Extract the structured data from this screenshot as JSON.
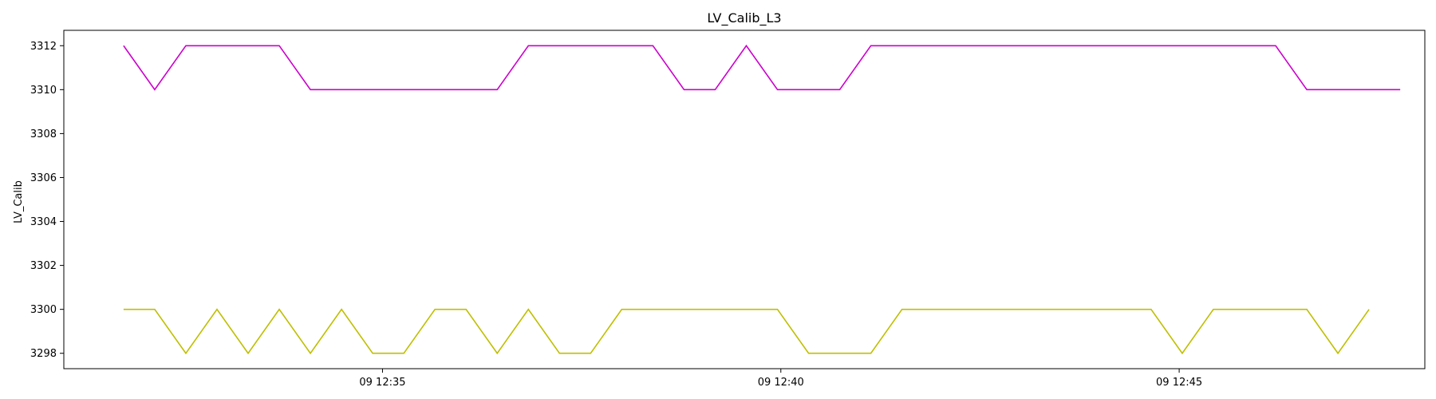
{
  "chart_data": {
    "type": "line",
    "title": "LV_Calib_L3",
    "xlabel": "",
    "ylabel": "LV_Calib",
    "x_axis": {
      "start_time": "12:31:45",
      "step_seconds": 23.45,
      "xlim_time": [
        "12:31:00",
        "12:48:05"
      ],
      "tick_times": [
        "12:35:00",
        "12:40:00",
        "12:45:00"
      ],
      "tick_labels": [
        "09 12:35",
        "09 12:40",
        "09 12:45"
      ]
    },
    "y_axis": {
      "ylim": [
        3297.3,
        3312.7
      ],
      "ticks": [
        3298,
        3300,
        3302,
        3304,
        3306,
        3308,
        3310,
        3312
      ],
      "tick_labels": [
        "3298",
        "3300",
        "3302",
        "3304",
        "3306",
        "3308",
        "3310",
        "3312"
      ]
    },
    "grid": false,
    "legend": "none",
    "series": [
      {
        "color": "#cc00cc",
        "values": [
          3312,
          3310,
          3312,
          3312,
          3312,
          3312,
          3310,
          3310,
          3310,
          3310,
          3310,
          3310,
          3310,
          3312,
          3312,
          3312,
          3312,
          3312,
          3310,
          3310,
          3312,
          3310,
          3310,
          3310,
          3312,
          3312,
          3312,
          3312,
          3312,
          3312,
          3312,
          3312,
          3312,
          3312,
          3312,
          3312,
          3312,
          3312,
          3310,
          3310,
          3310,
          3310
        ]
      },
      {
        "color": "#bfbf00",
        "values": [
          3300,
          3300,
          3298,
          3300,
          3298,
          3300,
          3298,
          3300,
          3298,
          3298,
          3300,
          3300,
          3298,
          3300,
          3298,
          3298,
          3300,
          3300,
          3300,
          3300,
          3300,
          3300,
          3298,
          3298,
          3298,
          3300,
          3300,
          3300,
          3300,
          3300,
          3300,
          3300,
          3300,
          3300,
          3298,
          3300,
          3300,
          3300,
          3300,
          3298,
          3300
        ]
      }
    ]
  }
}
